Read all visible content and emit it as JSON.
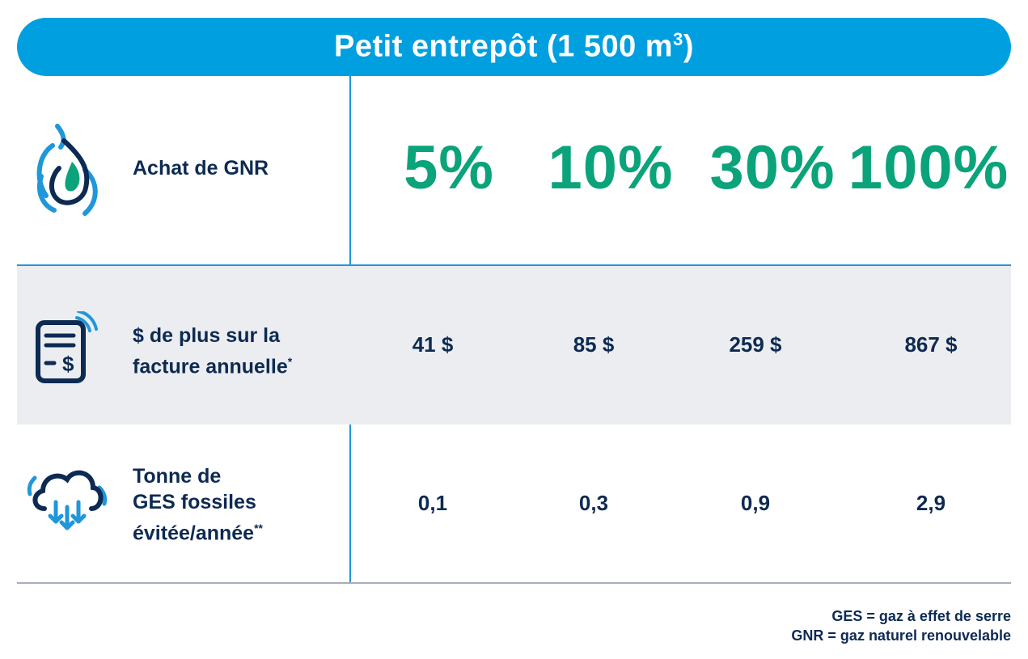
{
  "title": {
    "main": "Petit entrepôt (1 500 m",
    "sup": "3",
    "close": ")"
  },
  "rows": [
    {
      "label": "Achat de GNR",
      "icon": "gas-flame-icon"
    },
    {
      "label_line1": "$ de plus sur la",
      "label_line2": "facture annuelle",
      "footnote_mark": "*",
      "icon": "invoice-dollar-icon"
    },
    {
      "label_line1": "Tonne de",
      "label_line2": "GES fossiles",
      "label_line3": "évitée/année",
      "footnote_mark": "**",
      "icon": "cloud-down-arrows-icon"
    }
  ],
  "chart_data": {
    "type": "table",
    "columns": [
      "5%",
      "10%",
      "30%",
      "100%"
    ],
    "row_labels": [
      "Achat de GNR",
      "$ de plus sur la facture annuelle*",
      "Tonne de GES fossiles évitée/année**"
    ],
    "cost_values": [
      "41 $",
      "85 $",
      "259 $",
      "867 $"
    ],
    "ges_values": [
      "0,1",
      "0,3",
      "0,9",
      "2,9"
    ]
  },
  "footnotes": [
    "GES = gaz à effet de serre",
    "GNR = gaz naturel renouvelable"
  ],
  "colors": {
    "header": "#009fe0",
    "percent": "#0aa37a",
    "text": "#0d2a52",
    "grey_row": "#ebedf0"
  }
}
